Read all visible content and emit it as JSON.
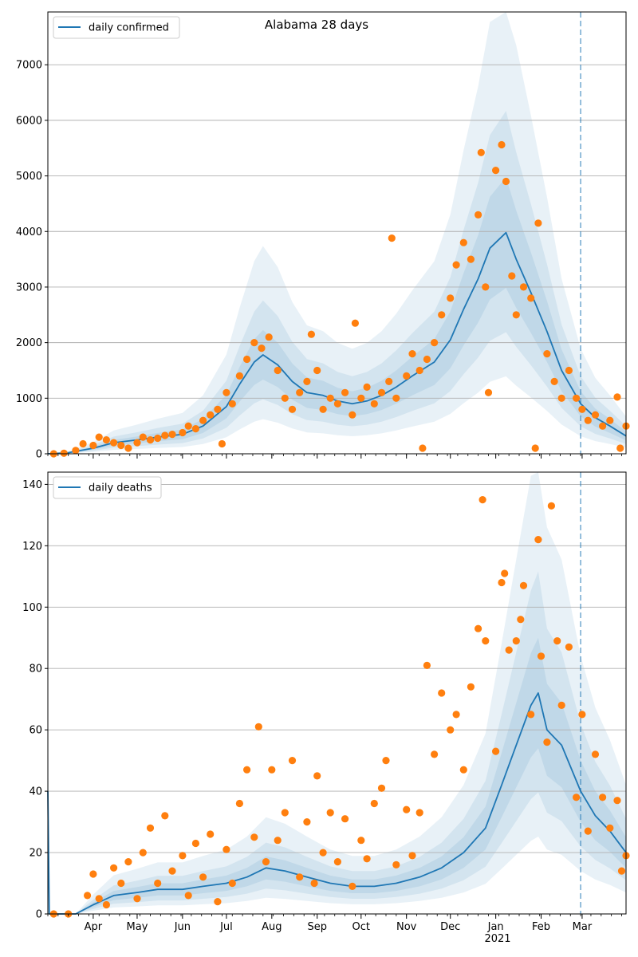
{
  "chart_data": [
    {
      "type": "line",
      "title": "Alabama 28 days",
      "xlabel": "",
      "ylabel": "",
      "xlim": [
        "2020-03-01",
        "2021-03-31"
      ],
      "ylim": [
        0,
        7950
      ],
      "yticks": [
        0,
        1000,
        2000,
        3000,
        4000,
        5000,
        6000,
        7000
      ],
      "grid": "horizontal",
      "legend_position": "top-left",
      "forecast_start": "2021-02-28",
      "series": [
        {
          "name": "daily confirmed",
          "kind": "line",
          "color": "#1f77b4",
          "points": [
            [
              "2020-03-01",
              0
            ],
            [
              "2020-03-15",
              20
            ],
            [
              "2020-04-01",
              100
            ],
            [
              "2020-04-15",
              200
            ],
            [
              "2020-05-01",
              250
            ],
            [
              "2020-05-15",
              300
            ],
            [
              "2020-06-01",
              350
            ],
            [
              "2020-06-15",
              500
            ],
            [
              "2020-07-01",
              850
            ],
            [
              "2020-07-10",
              1250
            ],
            [
              "2020-07-20",
              1650
            ],
            [
              "2020-07-26",
              1780
            ],
            [
              "2020-08-05",
              1600
            ],
            [
              "2020-08-15",
              1300
            ],
            [
              "2020-08-25",
              1100
            ],
            [
              "2020-09-05",
              1050
            ],
            [
              "2020-09-15",
              950
            ],
            [
              "2020-09-25",
              900
            ],
            [
              "2020-10-05",
              950
            ],
            [
              "2020-10-15",
              1050
            ],
            [
              "2020-10-25",
              1200
            ],
            [
              "2020-11-05",
              1400
            ],
            [
              "2020-11-20",
              1650
            ],
            [
              "2020-12-01",
              2050
            ],
            [
              "2020-12-10",
              2600
            ],
            [
              "2020-12-20",
              3150
            ],
            [
              "2020-12-28",
              3700
            ],
            [
              "2021-01-08",
              3980
            ],
            [
              "2021-01-15",
              3500
            ],
            [
              "2021-01-25",
              2900
            ],
            [
              "2021-02-05",
              2200
            ],
            [
              "2021-02-15",
              1500
            ],
            [
              "2021-02-28",
              900
            ],
            [
              "2021-03-10",
              650
            ],
            [
              "2021-03-20",
              500
            ],
            [
              "2021-03-31",
              320
            ]
          ]
        },
        {
          "name": "",
          "kind": "observed points",
          "color": "#ff7f0e",
          "points": [
            [
              "2020-03-05",
              0
            ],
            [
              "2020-03-12",
              10
            ],
            [
              "2020-03-20",
              60
            ],
            [
              "2020-03-25",
              180
            ],
            [
              "2020-04-01",
              150
            ],
            [
              "2020-04-05",
              300
            ],
            [
              "2020-04-10",
              250
            ],
            [
              "2020-04-15",
              200
            ],
            [
              "2020-04-20",
              150
            ],
            [
              "2020-04-25",
              100
            ],
            [
              "2020-05-01",
              200
            ],
            [
              "2020-05-05",
              300
            ],
            [
              "2020-05-10",
              250
            ],
            [
              "2020-05-15",
              280
            ],
            [
              "2020-05-20",
              330
            ],
            [
              "2020-05-25",
              350
            ],
            [
              "2020-06-01",
              380
            ],
            [
              "2020-06-05",
              500
            ],
            [
              "2020-06-10",
              450
            ],
            [
              "2020-06-15",
              600
            ],
            [
              "2020-06-20",
              700
            ],
            [
              "2020-06-25",
              800
            ],
            [
              "2020-06-28",
              180
            ],
            [
              "2020-07-01",
              1100
            ],
            [
              "2020-07-05",
              900
            ],
            [
              "2020-07-10",
              1400
            ],
            [
              "2020-07-15",
              1700
            ],
            [
              "2020-07-20",
              2000
            ],
            [
              "2020-07-25",
              1900
            ],
            [
              "2020-07-30",
              2100
            ],
            [
              "2020-08-05",
              1500
            ],
            [
              "2020-08-10",
              1000
            ],
            [
              "2020-08-15",
              800
            ],
            [
              "2020-08-20",
              1100
            ],
            [
              "2020-08-25",
              1300
            ],
            [
              "2020-08-28",
              2150
            ],
            [
              "2020-09-01",
              1500
            ],
            [
              "2020-09-05",
              800
            ],
            [
              "2020-09-10",
              1000
            ],
            [
              "2020-09-15",
              900
            ],
            [
              "2020-09-20",
              1100
            ],
            [
              "2020-09-25",
              700
            ],
            [
              "2020-09-27",
              2350
            ],
            [
              "2020-10-01",
              1000
            ],
            [
              "2020-10-05",
              1200
            ],
            [
              "2020-10-10",
              900
            ],
            [
              "2020-10-15",
              1100
            ],
            [
              "2020-10-20",
              1300
            ],
            [
              "2020-10-22",
              3880
            ],
            [
              "2020-10-25",
              1000
            ],
            [
              "2020-11-01",
              1400
            ],
            [
              "2020-11-05",
              1800
            ],
            [
              "2020-11-10",
              1500
            ],
            [
              "2020-11-12",
              100
            ],
            [
              "2020-11-15",
              1700
            ],
            [
              "2020-11-20",
              2000
            ],
            [
              "2020-11-25",
              2500
            ],
            [
              "2020-12-01",
              2800
            ],
            [
              "2020-12-05",
              3400
            ],
            [
              "2020-12-10",
              3800
            ],
            [
              "2020-12-15",
              3500
            ],
            [
              "2020-12-20",
              4300
            ],
            [
              "2020-12-22",
              5420
            ],
            [
              "2020-12-25",
              3000
            ],
            [
              "2020-12-27",
              1100
            ],
            [
              "2021-01-01",
              5100
            ],
            [
              "2021-01-05",
              5560
            ],
            [
              "2021-01-08",
              4900
            ],
            [
              "2021-01-12",
              3200
            ],
            [
              "2021-01-15",
              2500
            ],
            [
              "2021-01-20",
              3000
            ],
            [
              "2021-01-25",
              2800
            ],
            [
              "2021-01-30",
              4150
            ],
            [
              "2021-01-28",
              100
            ],
            [
              "2021-02-05",
              1800
            ],
            [
              "2021-02-10",
              1300
            ],
            [
              "2021-02-15",
              1000
            ],
            [
              "2021-02-20",
              1500
            ],
            [
              "2021-02-25",
              1000
            ],
            [
              "2021-03-01",
              800
            ],
            [
              "2021-03-05",
              600
            ],
            [
              "2021-03-10",
              700
            ],
            [
              "2021-03-15",
              500
            ],
            [
              "2021-03-20",
              600
            ],
            [
              "2021-03-25",
              1020
            ],
            [
              "2021-03-27",
              100
            ],
            [
              "2021-03-31",
              500
            ]
          ]
        }
      ],
      "x_tick_labels": [
        "Apr",
        "May",
        "Jun",
        "Jul",
        "Aug",
        "Sep",
        "Oct",
        "Nov",
        "Dec",
        "Jan",
        "Feb",
        "Mar"
      ],
      "x_year_label": ""
    },
    {
      "type": "line",
      "title": "",
      "xlabel": "",
      "ylabel": "",
      "xlim": [
        "2020-03-01",
        "2021-03-31"
      ],
      "ylim": [
        0,
        144
      ],
      "yticks": [
        0,
        20,
        40,
        60,
        80,
        100,
        120,
        140
      ],
      "grid": "horizontal",
      "legend_position": "top-left",
      "forecast_start": "2021-02-28",
      "series": [
        {
          "name": "daily deaths",
          "kind": "line",
          "color": "#1f77b4",
          "points": [
            [
              "2020-03-01",
              40
            ],
            [
              "2020-03-02",
              0
            ],
            [
              "2020-03-20",
              0
            ],
            [
              "2020-04-01",
              3
            ],
            [
              "2020-04-15",
              6
            ],
            [
              "2020-05-01",
              7
            ],
            [
              "2020-05-15",
              8
            ],
            [
              "2020-06-01",
              8
            ],
            [
              "2020-06-15",
              9
            ],
            [
              "2020-07-01",
              10
            ],
            [
              "2020-07-15",
              12
            ],
            [
              "2020-07-28",
              15
            ],
            [
              "2020-08-10",
              14
            ],
            [
              "2020-08-25",
              12
            ],
            [
              "2020-09-10",
              10
            ],
            [
              "2020-09-25",
              9
            ],
            [
              "2020-10-10",
              9
            ],
            [
              "2020-10-25",
              10
            ],
            [
              "2020-11-10",
              12
            ],
            [
              "2020-11-25",
              15
            ],
            [
              "2020-12-10",
              20
            ],
            [
              "2020-12-25",
              28
            ],
            [
              "2021-01-05",
              42
            ],
            [
              "2021-01-15",
              55
            ],
            [
              "2021-01-25",
              68
            ],
            [
              "2021-01-30",
              72
            ],
            [
              "2021-02-05",
              60
            ],
            [
              "2021-02-15",
              55
            ],
            [
              "2021-02-28",
              40
            ],
            [
              "2021-03-10",
              32
            ],
            [
              "2021-03-20",
              27
            ],
            [
              "2021-03-31",
              20
            ]
          ]
        },
        {
          "name": "",
          "kind": "observed points",
          "color": "#ff7f0e",
          "points": [
            [
              "2020-03-05",
              0
            ],
            [
              "2020-03-15",
              0
            ],
            [
              "2020-03-28",
              6
            ],
            [
              "2020-04-01",
              13
            ],
            [
              "2020-04-05",
              5
            ],
            [
              "2020-04-10",
              3
            ],
            [
              "2020-04-15",
              15
            ],
            [
              "2020-04-20",
              10
            ],
            [
              "2020-04-25",
              17
            ],
            [
              "2020-05-01",
              5
            ],
            [
              "2020-05-05",
              20
            ],
            [
              "2020-05-10",
              28
            ],
            [
              "2020-05-15",
              10
            ],
            [
              "2020-05-20",
              32
            ],
            [
              "2020-05-25",
              14
            ],
            [
              "2020-06-01",
              19
            ],
            [
              "2020-06-05",
              6
            ],
            [
              "2020-06-10",
              23
            ],
            [
              "2020-06-15",
              12
            ],
            [
              "2020-06-20",
              26
            ],
            [
              "2020-06-25",
              4
            ],
            [
              "2020-07-01",
              21
            ],
            [
              "2020-07-05",
              10
            ],
            [
              "2020-07-10",
              36
            ],
            [
              "2020-07-15",
              47
            ],
            [
              "2020-07-20",
              25
            ],
            [
              "2020-07-23",
              61
            ],
            [
              "2020-07-28",
              17
            ],
            [
              "2020-08-01",
              47
            ],
            [
              "2020-08-05",
              24
            ],
            [
              "2020-08-10",
              33
            ],
            [
              "2020-08-15",
              50
            ],
            [
              "2020-08-20",
              12
            ],
            [
              "2020-08-25",
              30
            ],
            [
              "2020-08-30",
              10
            ],
            [
              "2020-09-01",
              45
            ],
            [
              "2020-09-05",
              20
            ],
            [
              "2020-09-10",
              33
            ],
            [
              "2020-09-15",
              17
            ],
            [
              "2020-09-20",
              31
            ],
            [
              "2020-09-25",
              9
            ],
            [
              "2020-10-01",
              24
            ],
            [
              "2020-10-05",
              18
            ],
            [
              "2020-10-10",
              36
            ],
            [
              "2020-10-15",
              41
            ],
            [
              "2020-10-18",
              50
            ],
            [
              "2020-10-25",
              16
            ],
            [
              "2020-11-01",
              34
            ],
            [
              "2020-11-05",
              19
            ],
            [
              "2020-11-10",
              33
            ],
            [
              "2020-11-15",
              81
            ],
            [
              "2020-11-20",
              52
            ],
            [
              "2020-11-25",
              72
            ],
            [
              "2020-12-01",
              60
            ],
            [
              "2020-12-05",
              65
            ],
            [
              "2020-12-10",
              47
            ],
            [
              "2020-12-15",
              74
            ],
            [
              "2020-12-20",
              93
            ],
            [
              "2020-12-23",
              135
            ],
            [
              "2020-12-25",
              89
            ],
            [
              "2021-01-01",
              53
            ],
            [
              "2021-01-05",
              108
            ],
            [
              "2021-01-07",
              111
            ],
            [
              "2021-01-10",
              86
            ],
            [
              "2021-01-15",
              89
            ],
            [
              "2021-01-18",
              96
            ],
            [
              "2021-01-20",
              107
            ],
            [
              "2021-01-25",
              65
            ],
            [
              "2021-01-30",
              122
            ],
            [
              "2021-02-01",
              84
            ],
            [
              "2021-02-05",
              56
            ],
            [
              "2021-02-08",
              133
            ],
            [
              "2021-02-12",
              89
            ],
            [
              "2021-02-15",
              68
            ],
            [
              "2021-02-20",
              87
            ],
            [
              "2021-02-25",
              38
            ],
            [
              "2021-03-01",
              65
            ],
            [
              "2021-03-05",
              27
            ],
            [
              "2021-03-10",
              52
            ],
            [
              "2021-03-15",
              38
            ],
            [
              "2021-03-20",
              28
            ],
            [
              "2021-03-25",
              37
            ],
            [
              "2021-03-28",
              14
            ],
            [
              "2021-03-31",
              19
            ]
          ]
        }
      ],
      "x_tick_labels": [
        "Apr",
        "May",
        "Jun",
        "Jul",
        "Aug",
        "Sep",
        "Oct",
        "Nov",
        "Dec",
        "Jan",
        "Feb",
        "Mar"
      ],
      "x_year_label": "2021"
    }
  ]
}
